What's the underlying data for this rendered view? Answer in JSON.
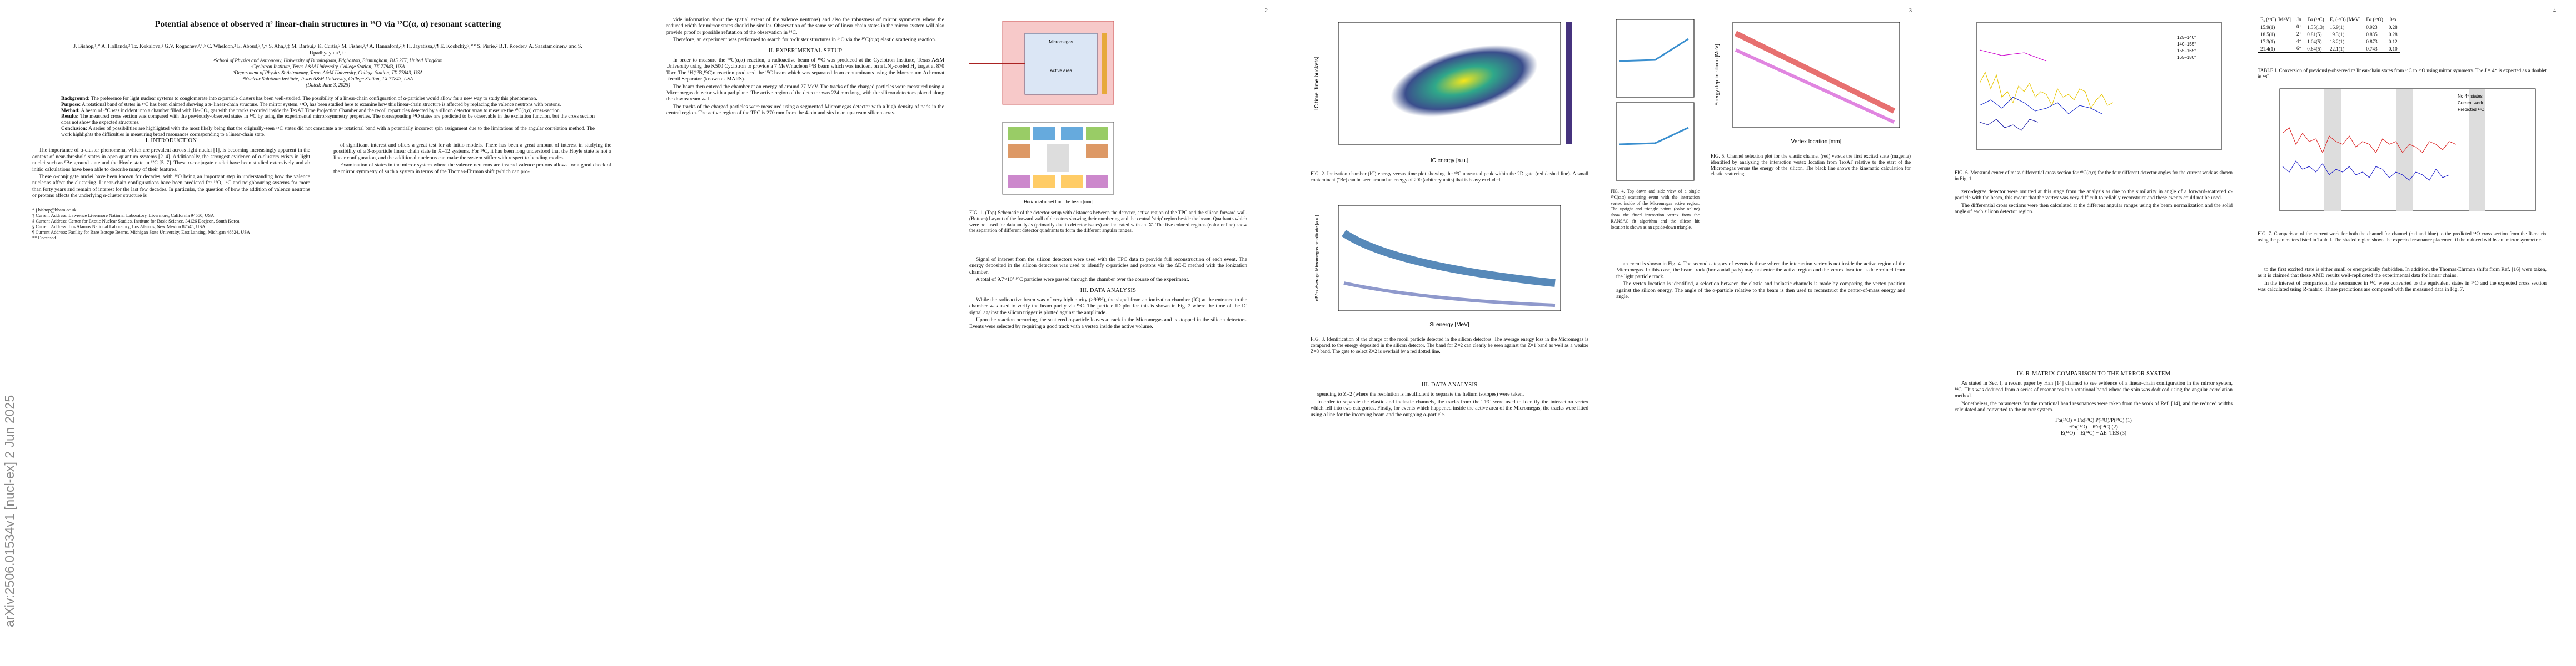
{
  "arxiv_stamp": "arXiv:2506.01534v1  [nucl-ex]  2 Jun 2025",
  "pages": [
    {
      "title": "Potential absence of observed π² linear-chain structures in ¹⁶O via ¹²C(α, α) resonant scattering",
      "authors": "J. Bishop,¹,* A. Hollands,² Tz. Kokalova,² G.V. Rogachev,³,⁴,⁵ C. Wheldon,² E. Aboud,³,⁴,† S. Ahn,³,‡ M. Barbui,³ K. Curtis,² M. Fisher,³,⁴ A. Hannaford,²,§ H. Jayatissa,³,¶ E. Koshchiy,³,** S. Pirrie,² B.T. Roeder,³ A. Saastamoinen,³ and S. Upadhyayula³,††",
      "affiliations": [
        "¹School of Physics and Astronomy, University of Birmingham, Edgbaston, Birmingham, B15 2TT, United Kingdom",
        "²Cyclotron Institute, Texas A&M University, College Station, TX 77843, USA",
        "³Department of Physics & Astronomy, Texas A&M University, College Station, TX 77843, USA",
        "⁴Nuclear Solutions Institute, Texas A&M University, College Station, TX 77843, USA",
        "(Dated: June 3, 2025)"
      ],
      "abstract": [
        {
          "label": "Background:",
          "text": "The preference for light nuclear systems to conglomerate into α-particle clusters has been well-studied. The possibility of a linear-chain configuration of α-particles would allow for a new way to study this phenomenon."
        },
        {
          "label": "Purpose:",
          "text": "A rotational band of states in ¹⁴C has been claimed showing a π² linear-chain structure. The mirror system, ¹⁴O, has been studied here to examine how this linear-chain structure is affected by replacing the valence neutrons with protons."
        },
        {
          "label": "Method:",
          "text": "A beam of ¹⁰C was incident into a chamber filled with He-CO₂ gas with the tracks recorded inside the TexAT Time Projection Chamber and the recoil α-particles detected by a silicon detector array to measure the ¹⁰C(α,α) cross-section."
        },
        {
          "label": "Results:",
          "text": "The measured cross section was compared with the previously-observed states in ¹⁴C by using the experimental mirror-symmetry properties. The corresponding ¹⁴O states are predicted to be observable in the excitation function, but the cross section does not show the expected structures."
        },
        {
          "label": "Conclusion:",
          "text": "A series of possibilities are highlighted with the most likely being that the originally-seen ¹⁴C states did not constitute a π² rotational band with a potentially incorrect spin assignment due to the limitations of the angular correlation method. The work highlights the difficulties in measuring broad resonances corresponding to a linear-chain state."
        }
      ],
      "intro_heading": "I. INTRODUCTION",
      "left_paragraphs": [
        "The importance of α-cluster phenomena, which are prevalent across light nuclei [1], is becoming increasingly apparent in the context of near-threshold states in open quantum systems [2–4]. Additionally, the strongest evidence of α-clusters exists in light nuclei such as ⁸Be ground state and the Hoyle state in ¹²C [5–7]. These α-conjugate nuclei have been studied extensively and ab initio calculations have been able to describe many of their features.",
        "These α-conjugate nuclei have been known for decades, with ¹⁶O being an important step in understanding how the valence nucleons affect the clustering. Linear-chain configurations have been predicted for ¹⁶O, ¹⁴C and neighbouring systems for more than forty years and remain of interest for the last few decades. In particular, the question of how the addition of valence neutrons or protons affects the underlying α-cluster structure is"
      ],
      "right_paragraphs": [
        "of significant interest and offers a great test for ab initio models. There has been a great amount of interest in studying the possibility of a 3-α-particle linear chain state in X=12 systems. For ¹⁴C, it has been long understood that the Hoyle state is not a linear configuration, and the additional nucleons can make the system stiffer with respect to bending modes.",
        "Examination of states in the mirror system where the valence neutrons are instead valence protons allows for a good check of the mirror symmetry of such a system in terms of the Thomas-Ehrman shift (which can pro-"
      ],
      "footnotes": [
        "* j.bishop@bham.ac.uk",
        "† Current Address: Lawrence Livermore National Laboratory, Livermore, California 94550, USA",
        "‡ Current Address: Center for Exotic Nuclear Studies, Institute for Basic Science, 34126 Daejeon, South Korea",
        "§ Current Address: Los Alamos National Laboratory, Los Alamos, New Mexico 87545, USA",
        "¶ Current Address: Facility for Rare Isotope Beams, Michigan State University, East Lansing, Michigan 48824, USA",
        "** Deceased"
      ]
    },
    {
      "number": "2",
      "left_top": [
        "vide information about the spatial extent of the valence neutrons) and also the robustness of mirror symmetry where the reduced width for mirror states should be similar. Observation of the same set of linear chain states in the mirror system will also provide proof or possible refutation of the observation in ¹⁴C.",
        "Therefore, an experiment was performed to search for α-cluster structures in ¹⁴O via the ¹⁰C(α,α) elastic scattering reaction."
      ],
      "setup_heading": "II. EXPERIMENTAL SETUP",
      "left_bottom": [
        "In order to measure the ¹⁰C(α,α) reaction, a radioactive beam of ¹⁰C was produced at the Cyclotron Institute, Texas A&M University using the K500 Cyclotron to provide a 7 MeV/nucleon ¹⁰B beam which was incident on a LN₂-cooled H₂ target at 870 Torr. The ¹H(¹⁰B,¹⁰C)n reaction produced the ¹⁰C beam which was separated from contaminants using the Momentum Achromat Recoil Separator (known as MARS).",
        "The beam then entered the chamber at an energy of around 27 MeV. The tracks of the charged particles were measured using a Micromegas detector with a pad plane. The active region of the detector was 224 mm long, with the silicon detectors placed along the downstream wall.",
        "The tracks of the charged particles were measured using a segmented Micromegas detector with a high density of pads in the central region. The active region of the TPC is 270 mm from the 4-pin and sits in an upstream silicon array."
      ],
      "right_paragraphs": [
        "Signal of interest from the silicon detectors were used with the TPC data to provide full reconstruction of each event. The energy deposited in the silicon detectors was used to identify α-particles and protons via the ΔE-E method with the ionization chamber.",
        "A total of 9.7×10⁷ ¹⁰C particles were passed through the chamber over the course of the experiment."
      ],
      "analysis_heading": "III. DATA ANALYSIS",
      "analysis_paragraphs": [
        "While the radioactive beam was of very high purity (>99%), the signal from an ionization chamber (IC) at the entrance to the chamber was used to verify the beam purity via ¹⁰C. The particle ID plot for this is shown in Fig. 2 where the time of the IC signal against the silicon trigger is plotted against the amplitude.",
        "Upon the reaction occurring, the scattered α-particle leaves a track in the Micromegas and is stopped in the silicon detectors. Events were selected by requiring a good track with a vertex inside the active volume."
      ],
      "fig1_caption": "FIG. 1. (Top) Schematic of the detector setup with distances between the detector, active region of the TPC and the silicon forward wall. (Bottom) Layout of the forward wall of detectors showing their numbering and the central 'strip' region beside the beam. Quadrants which were not used for data analysis (primarily due to detector issues) are indicated with an 'X'. The five colored regions (color online) show the separation of different detector quadrants to form the different angular ranges.",
      "fig1_labels": [
        "Micromegas",
        "Active area",
        "Horizontal offset from the beam [mm]"
      ]
    },
    {
      "number": "3",
      "fig2_caption": "FIG. 2. Ionization chamber (IC) energy versus time plot showing the ¹⁰C unreacted peak within the 2D gate (red dashed line). A small contaminant (⁷Be) can be seen around an energy of 200 (arbitrary units) that is heavy excluded.",
      "fig2_axes": [
        "IC energy [a.u.]",
        "IC time [time buckets]"
      ],
      "fig3_caption": "FIG. 3. Identification of the charge of the recoil particle detected in the silicon detectors. The average energy loss in the Micromegas is compared to the energy deposited in the silicon detector. The band for Z=2 can clearly be seen against the Z=1 band as well as a weaker Z=3 band. The gate to select Z=2 is overlaid by a red dotted line.",
      "fig3_axes": [
        "Si energy [MeV]",
        "dE/dx Average Micromegas amplitude [a.u.]"
      ],
      "fig4_caption": "FIG. 4. Top down and side view of a single ¹⁰C(α,α) scattering event with the interaction vertex inside of the Micromegas active region. The upright and triangle points (color online) show the fitted interaction vertex from the RANSAC fit algorithm and the silicon hit location is shown as an upside-down triangle.",
      "fig5_caption": "FIG. 5. Channel selection plot for the elastic channel (red) versus the first excited state (magenta) identified by analyzing the interaction vertex location from TexAT relative to the start of the Micromegas versus the energy of the silicon. The black line shows the kinematic calculation for elastic scattering.",
      "fig5_axes": [
        "Vertex location [mm]",
        "Energy dep. in silicon [MeV]"
      ],
      "left_paragraphs": [
        "spending to Z=2 (where the resolution is insufficient to separate the helium isotopes) were taken.",
        "In order to separate the elastic and inelastic channels, the tracks from the TPC were used to identify the interaction vertex which fell into two categories. Firstly, for events which happened inside the active area of the Micromegas, the tracks were fitted using a line for the incoming beam and the outgoing α-particle."
      ],
      "right_paragraphs": [
        "an event is shown in Fig. 4. The second category of events is those where the interaction vertex is not inside the active region of the Micromegas. In this case, the beam track (horizontal pads) may not enter the active region and the vertex location is determined from the light particle track.",
        "The vertex location is identified, a selection between the elastic and inelastic channels is made by comparing the vertex position against the silicon energy. The angle of the α-particle relative to the beam is then used to reconstruct the center-of-mass energy and angle."
      ]
    },
    {
      "number": "4",
      "table_headers": [
        "Eₓ (¹⁴C) [MeV]",
        "Jπ",
        "Γα (¹⁴C)",
        "Eₓ (¹⁴O) [MeV]",
        "Γα (¹⁴O)",
        "θ²α"
      ],
      "table_rows": [
        [
          "15.9(1)",
          "0⁺",
          "1.35(13)",
          "16.9(1)",
          "0.923",
          "0.28"
        ],
        [
          "18.5(1)",
          "2⁺",
          "0.81(5)",
          "19.3(1)",
          "0.835",
          "0.28"
        ],
        [
          "17.3(1)",
          "4⁺",
          "1.04(5)",
          "18.2(1)",
          "0.873",
          "0.12"
        ],
        [
          "21.4(1)",
          "6⁺",
          "0.64(5)",
          "22.1(1)",
          "0.743",
          "0.10"
        ]
      ],
      "table_caption": "TABLE I. Conversion of previously-observed π² linear-chain states from ¹⁴C to ¹⁴O using mirror symmetry. The J = 4⁺ is expected as a doublet in ¹⁴C.",
      "fig6_caption": "FIG. 6. Measured center of mass differential cross section for ¹⁰C(α,α) for the four different detector angles for the current work as shown in Fig. 1.",
      "fig6_legend": [
        "125–140°",
        "140–155°",
        "155–165°",
        "165–180°"
      ],
      "fig7_caption": "FIG. 7. Comparison of the current work for both the channel for channel (red and blue) to the predicted ¹⁴O cross section from the R-matrix using the parameters listed in Table I. The shaded region shows the expected resonance placement if the reduced widths are mirror symmetric.",
      "fig7_legend": [
        "No 4⁺ states",
        "Current work",
        "Predicted ¹⁴O"
      ],
      "left_paragraphs": [
        "zero-degree detector were omitted at this stage from the analysis as due to the similarity in angle of a forward-scattered α-particle with the beam, this meant that the vertex was very difficult to reliably reconstruct and these events could not be used.",
        "The differential cross sections were then calculated at the different angular ranges using the beam normalization and the solid angle of each silicon detector region."
      ],
      "right_paragraphs": [
        "to the first excited state is either small or energetically forbidden. In addition, the Thomas-Ehrman shifts from Ref. [16] were taken, as it is claimed that these AMD results well-replicated the experimental data for linear chains.",
        "In the interest of comparison, the resonances in ¹⁴C were converted to the equivalent states in ¹⁴O and the expected cross section was calculated using R-matrix. These predictions are compared with the measured data in Fig. 7."
      ],
      "rmatrix_heading": "IV. R-MATRIX COMPARISON TO THE MIRROR SYSTEM",
      "rmatrix_paragraphs": [
        "As stated in Sec. I, a recent paper by Han [14] claimed to see evidence of a linear-chain configuration in the mirror system, ¹⁴C. This was deduced from a series of resonances in a rotational band where the spin was deduced using the angular correlation method.",
        "Nonetheless, the parameters for the rotational band resonances were taken from the work of Ref. [14], and the reduced widths calculated and converted to the mirror system."
      ],
      "equations": [
        "Γα(¹⁴O) = Γα(¹⁴C) P(¹⁴O)/P(¹⁴C)  (1)",
        "θ²α(¹⁴O) = θ²α(¹⁴C)  (2)",
        "E(¹⁴O) = E(¹⁴C) + ΔE_TES  (3)"
      ]
    }
  ]
}
